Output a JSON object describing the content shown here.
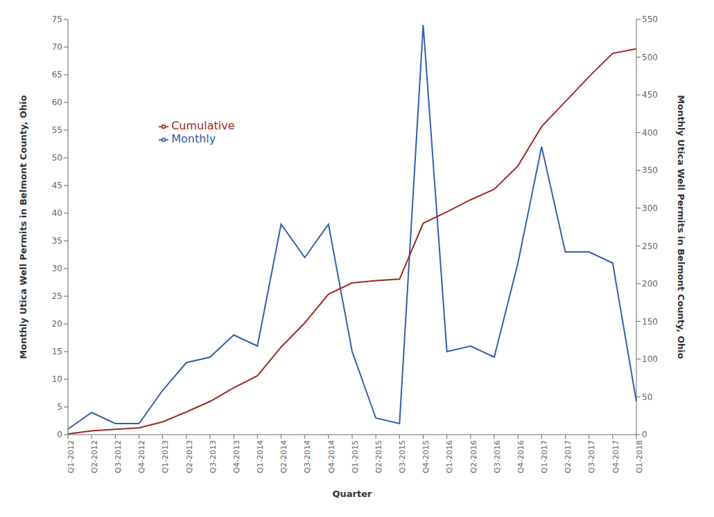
{
  "chart_data": {
    "type": "line",
    "xlabel": "Quarter",
    "ylabel": "Monthly Utica Well Permits in Belmont County, Ohio",
    "y2label": "Monthly Utica Well Permits in Belmont County, Ohio",
    "categories": [
      "Q1-2012",
      "Q2-2012",
      "Q3-2012",
      "Q4-2012",
      "Q1-2013",
      "Q2-2013",
      "Q3-2013",
      "Q4-2013",
      "Q1-2014",
      "Q2-2014",
      "Q3-2014",
      "Q4-2014",
      "Q1-2015",
      "Q2-2015",
      "Q3-2015",
      "Q4-2015",
      "Q1-2016",
      "Q2-2016",
      "Q3-2016",
      "Q4-2016",
      "Q1-2017",
      "Q2-2017",
      "Q3-2017",
      "Q4-2017",
      "Q1-2018"
    ],
    "series": [
      {
        "name": "Monthly",
        "color": "#3060a8",
        "values": [
          1,
          4,
          2,
          2,
          8,
          13,
          14,
          18,
          16,
          38,
          32,
          38,
          15,
          3,
          2,
          74,
          15,
          16,
          14,
          31,
          52,
          33,
          33,
          31,
          6
        ]
      },
      {
        "name": "Cumulative",
        "color": "#9b2a22",
        "axis": "y2",
        "values": [
          1,
          5,
          7,
          9,
          17,
          30,
          44,
          62,
          78,
          116,
          148,
          186,
          201,
          204,
          206,
          280,
          295,
          311,
          325,
          356,
          408,
          441,
          474,
          505,
          511
        ]
      }
    ],
    "ylim": [
      0,
      75
    ],
    "yticks": [
      0,
      5,
      10,
      15,
      20,
      25,
      30,
      35,
      40,
      45,
      50,
      55,
      60,
      65,
      70,
      75
    ],
    "y2lim": [
      0,
      550
    ],
    "y2ticks": [
      0,
      50,
      100,
      150,
      200,
      250,
      300,
      350,
      400,
      450,
      500,
      550
    ],
    "legend": "upper left",
    "grid": false
  }
}
